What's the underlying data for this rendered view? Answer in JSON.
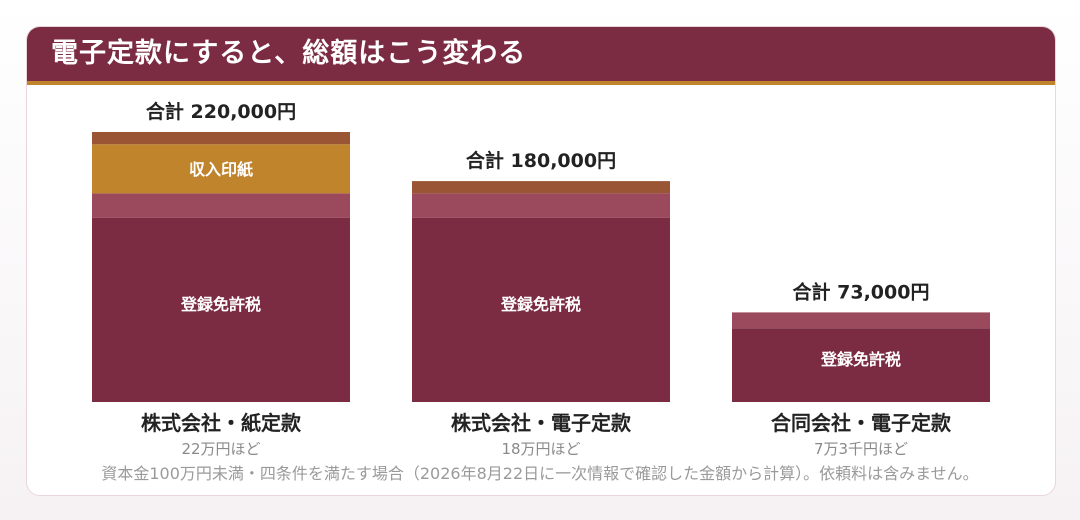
{
  "header": {
    "title": "電子定款にすると、総額はこう変わる"
  },
  "note": "資本金100万円未満・四条件を満たす場合（2026年8月22日に一次情報で確認した金額から計算）。依頼料は含みません。",
  "colors": {
    "header_bg": "#7b2b42",
    "accent": "#c0842d",
    "registration_tax": "#7b2b42",
    "registration_tax_top": "#9a4a5c",
    "stamp_fee": "#c0842d",
    "top_band": "#9a5535"
  },
  "chart_data": {
    "type": "bar",
    "stacked": true,
    "categories": [
      "株式会社・紙定款",
      "株式会社・電子定款",
      "合同会社・電子定款"
    ],
    "subtitles": [
      "22万円ほど",
      "18万円ほど",
      "7万3千円ほど"
    ],
    "totals": [
      220000,
      180000,
      73000
    ],
    "total_labels": [
      "合計 220,000円",
      "合計 180,000円",
      "合計 73,000円"
    ],
    "segments": [
      {
        "label": "登録免許税",
        "values": [
          150000,
          150000,
          60000
        ]
      },
      {
        "label": "",
        "values": [
          20000,
          20000,
          13000
        ]
      },
      {
        "label": "収入印紙",
        "values": [
          40000,
          0,
          0
        ]
      },
      {
        "label": "",
        "values": [
          10000,
          10000,
          0
        ]
      }
    ],
    "ylim": [
      0,
      220000
    ],
    "grid": false,
    "legend": "none"
  }
}
